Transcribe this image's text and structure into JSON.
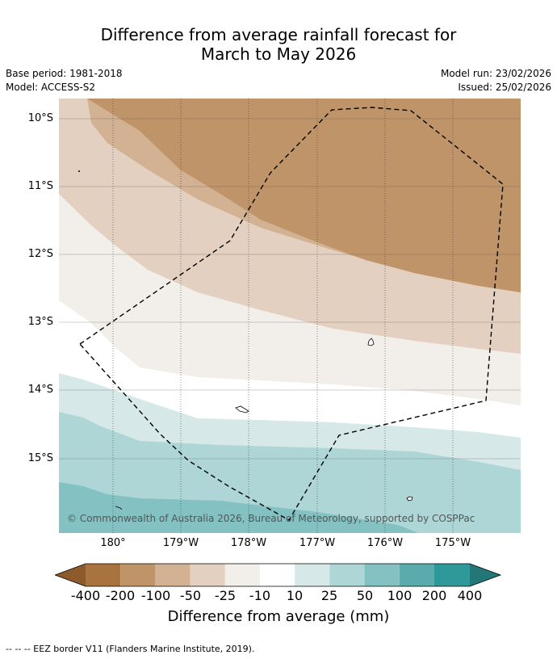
{
  "title": {
    "line1": "Difference from average rainfall forecast for",
    "line2": "March to May 2026"
  },
  "meta": {
    "base_period": "Base period: 1981-2018",
    "model": "Model: ACCESS-S2",
    "model_run": "Model run: 23/02/2026",
    "issued": "Issued: 25/02/2026"
  },
  "map": {
    "lat_labels": [
      "10°S",
      "11°S",
      "12°S",
      "13°S",
      "14°S",
      "15°S"
    ],
    "lon_labels": [
      "180°",
      "179°W",
      "178°W",
      "177°W",
      "176°W",
      "175°W"
    ],
    "copyright": "© Commonwealth of Australia 2026, Bureau of Meteorology, supported by COSPPac",
    "legend_colors": {
      "below_400": "#8c5a2b",
      "m400": "#a9733f",
      "m200": "#bf9468",
      "m100": "#d2b293",
      "m50": "#e3d0c0",
      "m25": "#f2eee9",
      "m10": "#ffffff",
      "p10": "#d6e9e8",
      "p25": "#aed6d6",
      "p50": "#83c1c2",
      "p100": "#5aacac",
      "p200": "#2f9898",
      "above_400": "#247777"
    }
  },
  "colorbar": {
    "ticks": [
      "-400",
      "-200",
      "-100",
      "-50",
      "-25",
      "-10",
      "10",
      "25",
      "50",
      "100",
      "200",
      "400"
    ],
    "title": "Difference from average (mm)"
  },
  "footnote": "--  --  -- EEZ border V11 (Flanders Marine Institute, 2019)."
}
